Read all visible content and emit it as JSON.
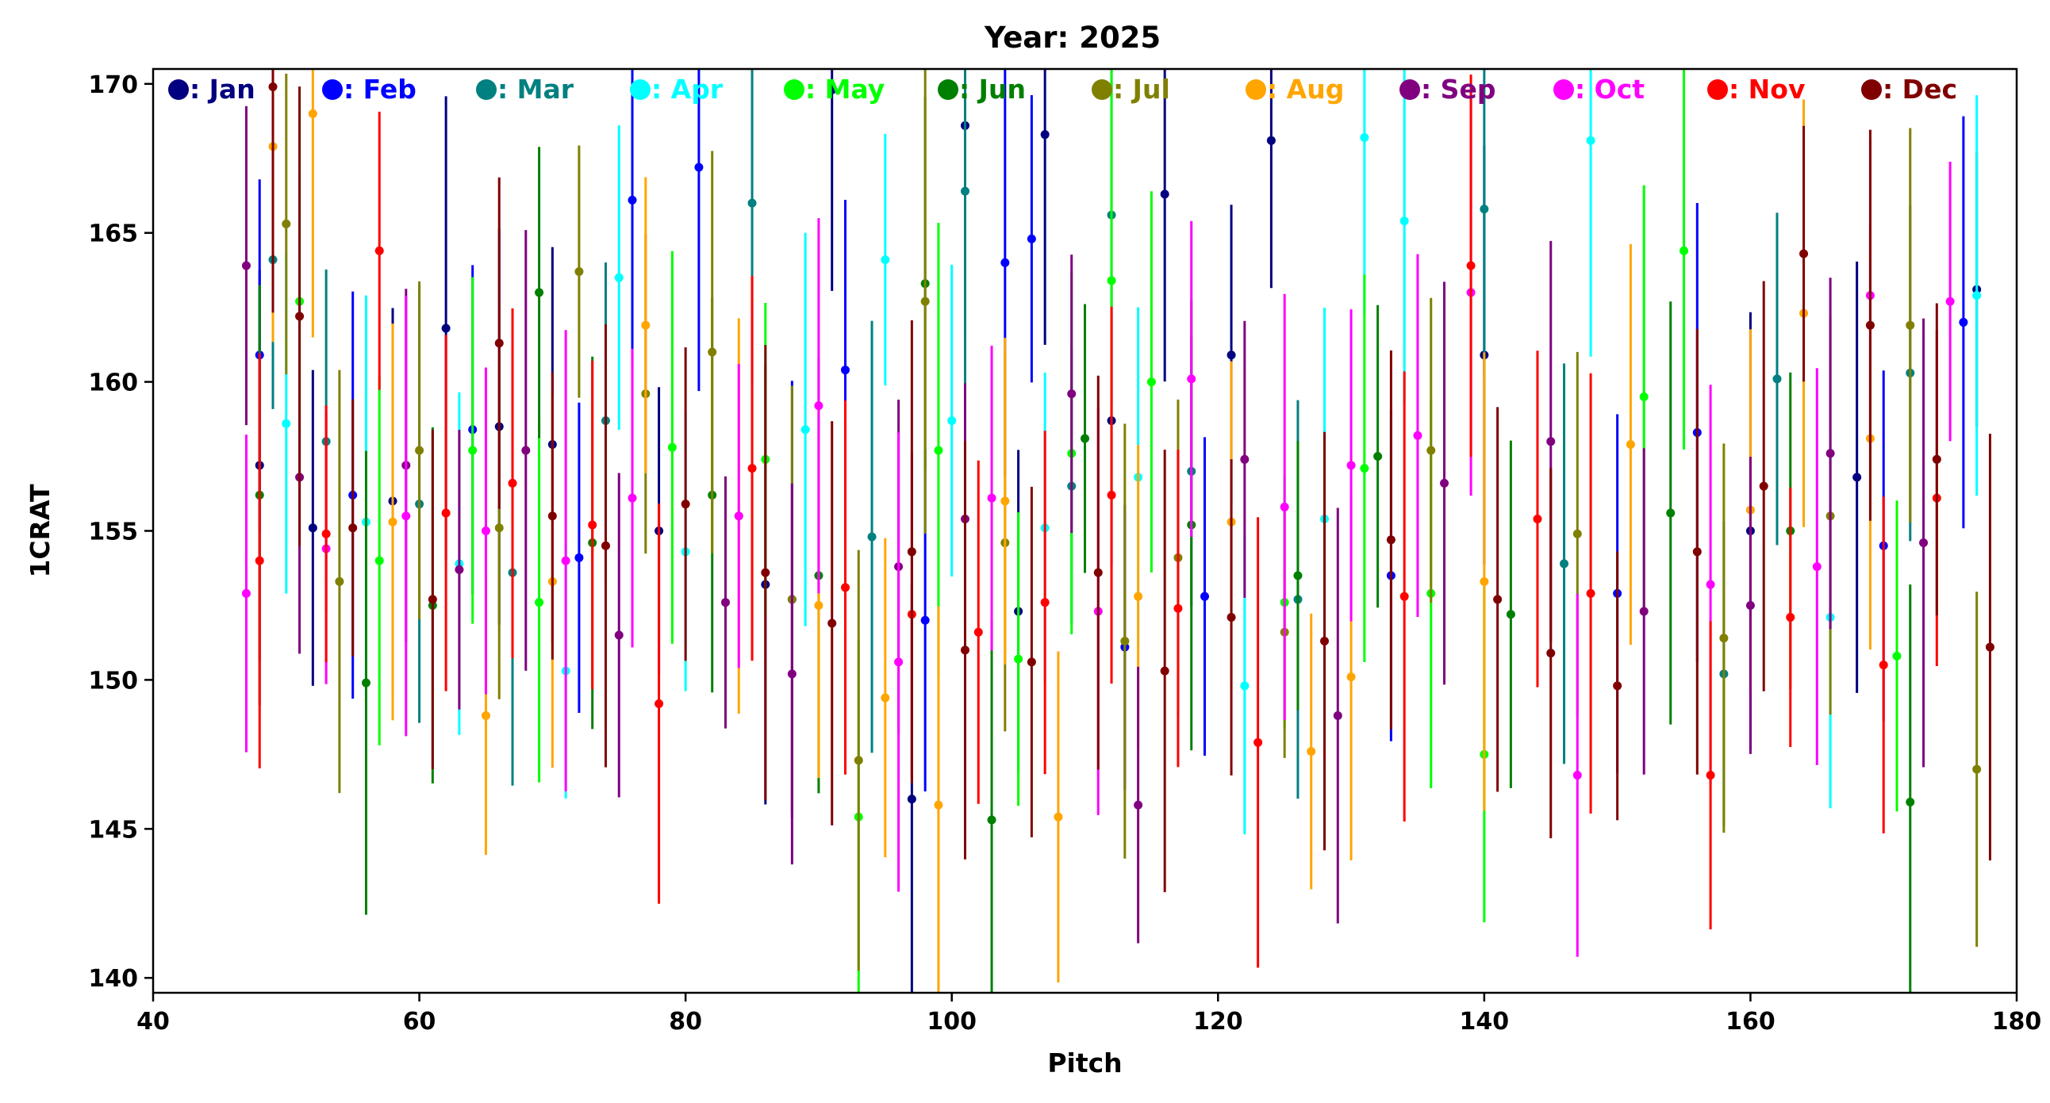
{
  "chart_data": {
    "type": "scatter",
    "title": "Year: 2025",
    "xlabel": "Pitch",
    "ylabel": "1CRAT",
    "xlim": [
      40,
      180
    ],
    "ylim": [
      139.5,
      170.5
    ],
    "xticks": [
      40,
      60,
      80,
      100,
      120,
      140,
      160,
      180
    ],
    "yticks": [
      140,
      145,
      150,
      155,
      160,
      165,
      170
    ],
    "grid": false,
    "legend_placement": "top",
    "marker": "circle with vertical error bar",
    "x_range_of_points": [
      47,
      178
    ],
    "typical_error_bar_halfwidth": 6,
    "series": [
      {
        "name": ": Jan",
        "color": "#000080",
        "x": [
          48,
          52,
          58,
          62,
          66,
          70,
          78,
          86,
          91,
          97,
          101,
          105,
          107,
          112,
          116,
          121,
          124,
          140,
          160,
          168,
          177
        ],
        "y": [
          157.2,
          155.1,
          156.0,
          161.8,
          158.5,
          157.9,
          155.0,
          153.2,
          169.8,
          146.0,
          168.6,
          152.3,
          168.3,
          158.7,
          166.3,
          160.9,
          168.1,
          160.9,
          155.0,
          156.8,
          163.1
        ]
      },
      {
        "name": ": Feb",
        "color": "#0000ff",
        "x": [
          48,
          55,
          64,
          72,
          76,
          81,
          88,
          92,
          98,
          104,
          106,
          113,
          119,
          133,
          150,
          156,
          170,
          176
        ],
        "y": [
          160.9,
          156.2,
          158.4,
          154.1,
          166.1,
          167.2,
          152.7,
          160.4,
          152.0,
          164.0,
          164.8,
          151.1,
          152.8,
          153.5,
          152.9,
          158.3,
          154.5,
          162.0
        ]
      },
      {
        "name": ": Mar",
        "color": "#008080",
        "x": [
          49,
          53,
          60,
          67,
          74,
          85,
          94,
          101,
          109,
          112,
          118,
          126,
          140,
          146,
          158,
          162,
          172
        ],
        "y": [
          164.1,
          158.0,
          155.9,
          153.6,
          158.7,
          166.0,
          154.8,
          166.4,
          156.5,
          165.6,
          157.0,
          152.7,
          165.8,
          153.9,
          150.2,
          160.1,
          160.3
        ]
      },
      {
        "name": ": Apr",
        "color": "#00ffff",
        "x": [
          50,
          56,
          63,
          71,
          75,
          80,
          89,
          95,
          100,
          107,
          114,
          122,
          128,
          131,
          134,
          148,
          166,
          177
        ],
        "y": [
          158.6,
          155.3,
          153.9,
          150.3,
          163.5,
          154.3,
          158.4,
          164.1,
          158.7,
          155.1,
          156.8,
          149.8,
          155.4,
          168.2,
          165.4,
          168.1,
          152.1,
          162.9
        ]
      },
      {
        "name": ": May",
        "color": "#00ff00",
        "x": [
          51,
          57,
          64,
          69,
          79,
          86,
          93,
          99,
          105,
          109,
          112,
          115,
          125,
          131,
          136,
          140,
          152,
          155,
          171
        ],
        "y": [
          162.7,
          154.0,
          157.7,
          152.6,
          157.8,
          157.4,
          145.4,
          157.7,
          150.7,
          157.6,
          163.4,
          160.0,
          152.6,
          157.1,
          152.9,
          147.5,
          159.5,
          164.4,
          150.8
        ]
      },
      {
        "name": ": Jun",
        "color": "#008000",
        "x": [
          48,
          56,
          61,
          69,
          73,
          82,
          90,
          98,
          103,
          110,
          118,
          126,
          132,
          142,
          154,
          163,
          172
        ],
        "y": [
          156.2,
          149.9,
          152.5,
          163.0,
          154.6,
          156.2,
          153.5,
          163.3,
          145.3,
          158.1,
          155.2,
          153.5,
          157.5,
          152.2,
          155.6,
          155.0,
          145.9
        ]
      },
      {
        "name": ": Jul",
        "color": "#808000",
        "x": [
          50,
          54,
          60,
          66,
          72,
          77,
          82,
          88,
          93,
          98,
          104,
          113,
          117,
          125,
          136,
          147,
          158,
          166,
          172,
          177
        ],
        "y": [
          165.3,
          153.3,
          157.7,
          155.1,
          163.7,
          159.6,
          161.0,
          152.7,
          147.3,
          162.7,
          154.6,
          151.3,
          154.1,
          151.6,
          157.7,
          154.9,
          151.4,
          155.5,
          161.9,
          147.0
        ]
      },
      {
        "name": ": Aug",
        "color": "#ffa500",
        "x": [
          49,
          52,
          58,
          65,
          70,
          77,
          84,
          90,
          95,
          99,
          104,
          108,
          114,
          121,
          127,
          130,
          140,
          151,
          160,
          164,
          169
        ],
        "y": [
          167.9,
          169.0,
          155.3,
          148.8,
          153.3,
          161.9,
          155.5,
          152.5,
          149.4,
          145.8,
          156.0,
          145.4,
          152.8,
          155.3,
          147.6,
          150.1,
          153.3,
          157.9,
          155.7,
          162.3,
          158.1
        ]
      },
      {
        "name": ": Sep",
        "color": "#800080",
        "x": [
          47,
          51,
          59,
          63,
          68,
          75,
          83,
          88,
          96,
          101,
          109,
          114,
          122,
          129,
          137,
          145,
          152,
          160,
          166,
          173
        ],
        "y": [
          163.9,
          156.8,
          157.2,
          153.7,
          157.7,
          151.5,
          152.6,
          150.2,
          153.8,
          155.4,
          159.6,
          145.8,
          157.4,
          148.8,
          156.6,
          158.0,
          152.3,
          152.5,
          157.6,
          154.6
        ]
      },
      {
        "name": ": Oct",
        "color": "#ff00ff",
        "x": [
          47,
          53,
          59,
          65,
          71,
          76,
          84,
          90,
          96,
          103,
          111,
          118,
          125,
          130,
          135,
          139,
          147,
          157,
          165,
          169,
          175
        ],
        "y": [
          152.9,
          154.4,
          155.5,
          155.0,
          154.0,
          156.1,
          155.5,
          159.2,
          150.6,
          156.1,
          152.3,
          160.1,
          155.8,
          157.2,
          158.2,
          163.0,
          146.8,
          153.2,
          153.8,
          162.9,
          162.7
        ]
      },
      {
        "name": ": Nov",
        "color": "#ff0000",
        "x": [
          48,
          53,
          57,
          62,
          67,
          73,
          78,
          85,
          92,
          97,
          102,
          107,
          112,
          117,
          123,
          134,
          139,
          144,
          148,
          157,
          163,
          170,
          174
        ],
        "y": [
          154.0,
          154.9,
          164.4,
          155.6,
          156.6,
          155.2,
          149.2,
          157.1,
          153.1,
          152.2,
          151.6,
          152.6,
          156.2,
          152.4,
          147.9,
          152.8,
          163.9,
          155.4,
          152.9,
          146.8,
          152.1,
          150.5,
          156.1
        ]
      },
      {
        "name": ": Dec",
        "color": "#800000",
        "x": [
          49,
          51,
          55,
          61,
          66,
          70,
          74,
          80,
          86,
          91,
          97,
          101,
          106,
          111,
          116,
          121,
          128,
          133,
          141,
          145,
          150,
          156,
          161,
          164,
          169,
          174,
          178
        ],
        "y": [
          169.9,
          162.2,
          155.1,
          152.7,
          161.3,
          155.5,
          154.5,
          155.9,
          153.6,
          151.9,
          154.3,
          151.0,
          150.6,
          153.6,
          150.3,
          152.1,
          151.3,
          154.7,
          152.7,
          150.9,
          149.8,
          154.3,
          156.5,
          164.3,
          161.9,
          157.4,
          151.1
        ]
      }
    ]
  }
}
